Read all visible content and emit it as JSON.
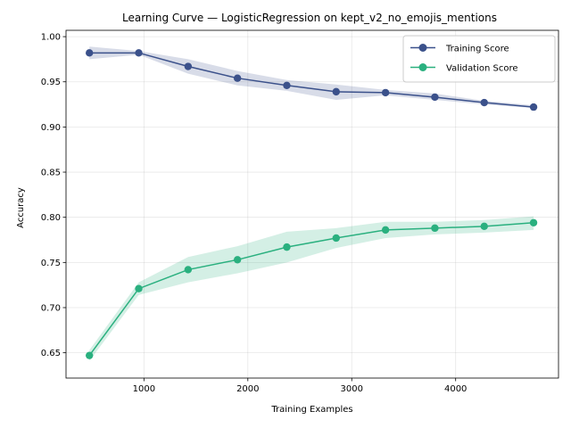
{
  "chart_data": {
    "type": "line",
    "title": "Learning Curve — LogisticRegression on kept_v2_no_emojis_mentions",
    "xlabel": "Training Examples",
    "ylabel": "Accuracy",
    "xlim": [
      250,
      4990
    ],
    "ylim": [
      0.622,
      1.007
    ],
    "xticks": [
      1000,
      2000,
      3000,
      4000
    ],
    "yticks": [
      0.65,
      0.7,
      0.75,
      0.8,
      0.85,
      0.9,
      0.95,
      1.0
    ],
    "xtick_labels": [
      "1000",
      "2000",
      "3000",
      "4000"
    ],
    "ytick_labels": [
      "0.65",
      "0.70",
      "0.75",
      "0.80",
      "0.85",
      "0.90",
      "0.95",
      "1.00"
    ],
    "grid": true,
    "legend_position": "top-right",
    "x": [
      475,
      950,
      1425,
      1900,
      2375,
      2850,
      3325,
      3800,
      4275,
      4750
    ],
    "series": [
      {
        "name": "Training Score",
        "color": "#3b518b",
        "values": [
          0.982,
          0.982,
          0.967,
          0.954,
          0.946,
          0.939,
          0.938,
          0.933,
          0.927,
          0.922
        ],
        "lower": [
          0.975,
          0.98,
          0.959,
          0.946,
          0.94,
          0.93,
          0.935,
          0.93,
          0.925,
          0.921
        ],
        "upper": [
          0.989,
          0.984,
          0.975,
          0.962,
          0.952,
          0.947,
          0.941,
          0.937,
          0.929,
          0.924
        ]
      },
      {
        "name": "Validation Score",
        "color": "#2ab07f",
        "values": [
          0.647,
          0.721,
          0.742,
          0.753,
          0.767,
          0.777,
          0.786,
          0.788,
          0.79,
          0.794
        ],
        "lower": [
          0.641,
          0.714,
          0.728,
          0.738,
          0.75,
          0.766,
          0.777,
          0.781,
          0.783,
          0.786
        ],
        "upper": [
          0.653,
          0.728,
          0.756,
          0.768,
          0.784,
          0.788,
          0.795,
          0.795,
          0.797,
          0.801
        ]
      }
    ]
  }
}
